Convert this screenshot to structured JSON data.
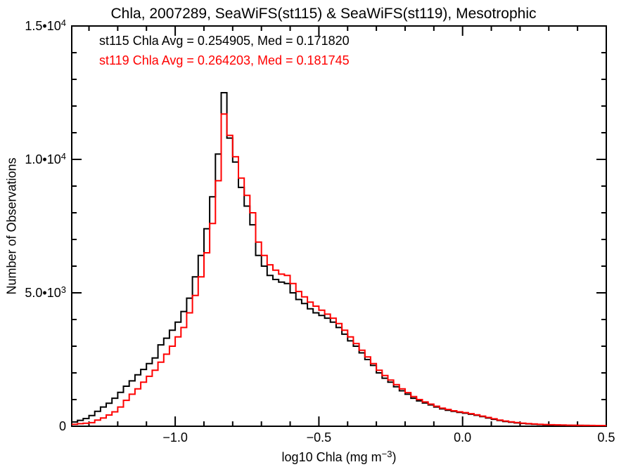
{
  "title": "Chla, 2007289, SeaWiFS(st115) & SeaWiFS(st119), Mesotrophic",
  "legend": {
    "line1": {
      "text": "st115 Chla Avg = 0.254905, Med = 0.171820",
      "color": "#000000"
    },
    "line2": {
      "text": "st119 Chla Avg = 0.264203, Med = 0.181745",
      "color": "#ff0000"
    }
  },
  "chart_data": {
    "type": "line",
    "subtype": "step-histogram",
    "title": "Chla, 2007289, SeaWiFS(st115) & SeaWiFS(st119), Mesotrophic",
    "xlabel": "log10 Chla (mg m^-3)",
    "xlabel_parts": {
      "pre": "log10 Chla (mg m",
      "sup": "−3",
      "post": ")"
    },
    "ylabel": "Number of Observations",
    "xlim": [
      -1.36,
      0.5
    ],
    "ylim": [
      0,
      15000
    ],
    "grid": false,
    "legend_position": "top-left-inside",
    "x_major_ticks": [
      -1.0,
      -0.5,
      0.0,
      0.5
    ],
    "x_tick_labels": [
      "−1.0",
      "−0.5",
      "0.0",
      "0.5"
    ],
    "x_minor_interval": 0.1,
    "y_major_ticks": [
      0,
      5000,
      10000,
      15000
    ],
    "y_tick_labels": [
      {
        "text": "0",
        "sup": ""
      },
      {
        "text": "5.0•10",
        "sup": "3"
      },
      {
        "text": "1.0•10",
        "sup": "4"
      },
      {
        "text": "1.5•10",
        "sup": "4"
      }
    ],
    "y_minor_interval": 1000,
    "x": [
      -1.35,
      -1.33,
      -1.31,
      -1.29,
      -1.27,
      -1.25,
      -1.23,
      -1.21,
      -1.19,
      -1.17,
      -1.15,
      -1.13,
      -1.11,
      -1.09,
      -1.07,
      -1.05,
      -1.03,
      -1.01,
      -0.99,
      -0.97,
      -0.95,
      -0.93,
      -0.91,
      -0.89,
      -0.87,
      -0.85,
      -0.83,
      -0.81,
      -0.79,
      -0.77,
      -0.75,
      -0.73,
      -0.71,
      -0.69,
      -0.67,
      -0.65,
      -0.63,
      -0.61,
      -0.59,
      -0.57,
      -0.55,
      -0.53,
      -0.51,
      -0.49,
      -0.47,
      -0.45,
      -0.43,
      -0.41,
      -0.39,
      -0.37,
      -0.35,
      -0.33,
      -0.31,
      -0.29,
      -0.27,
      -0.25,
      -0.23,
      -0.21,
      -0.19,
      -0.17,
      -0.15,
      -0.13,
      -0.11,
      -0.09,
      -0.07,
      -0.05,
      -0.03,
      -0.01,
      0.01,
      0.03,
      0.05,
      0.07,
      0.09,
      0.11,
      0.13,
      0.15,
      0.17,
      0.19,
      0.21,
      0.23,
      0.25,
      0.27,
      0.29,
      0.31,
      0.33,
      0.35,
      0.37,
      0.39,
      0.41,
      0.43,
      0.45,
      0.47,
      0.49
    ],
    "series": [
      {
        "name": "st115",
        "color": "#000000",
        "avg": 0.254905,
        "med": 0.17182,
        "values": [
          160,
          220,
          290,
          400,
          560,
          720,
          860,
          1050,
          1270,
          1500,
          1700,
          1930,
          2130,
          2350,
          2560,
          3050,
          3300,
          3600,
          3900,
          4300,
          4800,
          5600,
          6400,
          7400,
          8600,
          10200,
          12500,
          10800,
          9900,
          8950,
          8250,
          7550,
          6400,
          6000,
          5650,
          5500,
          5400,
          5350,
          5000,
          4750,
          4600,
          4400,
          4250,
          4150,
          4050,
          3900,
          3700,
          3450,
          3200,
          3000,
          2750,
          2500,
          2280,
          2000,
          1800,
          1650,
          1480,
          1330,
          1200,
          1050,
          950,
          870,
          800,
          720,
          650,
          600,
          560,
          520,
          490,
          450,
          410,
          360,
          310,
          260,
          215,
          180,
          150,
          125,
          105,
          90,
          75,
          65,
          55,
          50,
          45,
          40,
          35,
          32,
          30,
          28,
          26,
          25,
          24
        ]
      },
      {
        "name": "st119",
        "color": "#ff0000",
        "avg": 0.264203,
        "med": 0.181745,
        "values": [
          70,
          95,
          110,
          135,
          230,
          310,
          420,
          540,
          720,
          970,
          1200,
          1400,
          1650,
          1870,
          2100,
          2400,
          2700,
          3000,
          3350,
          3700,
          4250,
          4900,
          5600,
          6500,
          7600,
          9200,
          11700,
          10900,
          10100,
          9300,
          8650,
          8000,
          6900,
          6400,
          6050,
          5850,
          5700,
          5650,
          5350,
          5050,
          4850,
          4650,
          4500,
          4350,
          4200,
          4050,
          3850,
          3600,
          3350,
          3100,
          2850,
          2600,
          2350,
          2100,
          1900,
          1730,
          1560,
          1400,
          1260,
          1110,
          1000,
          910,
          830,
          750,
          680,
          630,
          580,
          540,
          510,
          470,
          430,
          380,
          330,
          280,
          230,
          195,
          165,
          140,
          115,
          100,
          85,
          72,
          62,
          55,
          50,
          45,
          40,
          36,
          33,
          30,
          28,
          27,
          26
        ]
      }
    ]
  }
}
